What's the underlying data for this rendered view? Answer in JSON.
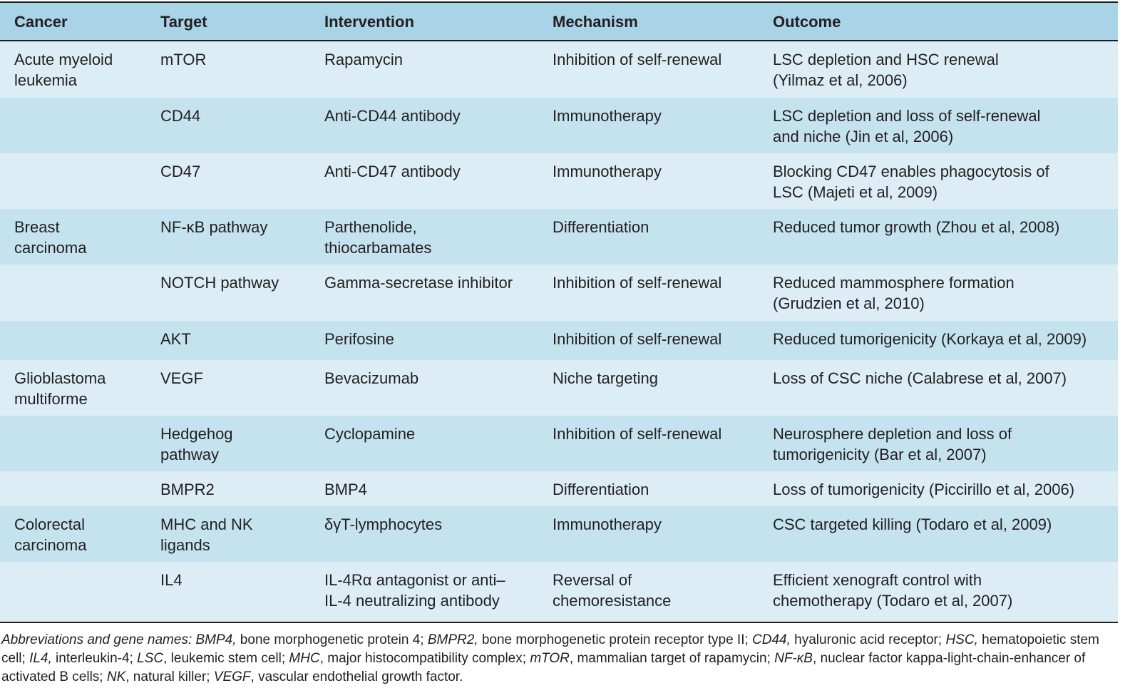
{
  "table": {
    "header": [
      "Cancer",
      "Target",
      "Intervention",
      "Mechanism",
      "Outcome"
    ],
    "rows": [
      [
        [
          "Acute myeloid",
          "leukemia"
        ],
        [
          "mTOR"
        ],
        [
          "Rapamycin"
        ],
        [
          "Inhibition of self-renewal"
        ],
        [
          "LSC depletion and HSC renewal",
          "(Yilmaz et al, 2006)"
        ]
      ],
      [
        [],
        [
          "CD44"
        ],
        [
          "Anti-CD44 antibody"
        ],
        [
          "Immunotherapy"
        ],
        [
          "LSC depletion and loss of self-renewal",
          "and niche (Jin et al, 2006)"
        ]
      ],
      [
        [],
        [
          "CD47"
        ],
        [
          "Anti-CD47 antibody"
        ],
        [
          "Immunotherapy"
        ],
        [
          "Blocking CD47 enables phagocytosis of",
          "LSC (Majeti et al, 2009)"
        ]
      ],
      [
        [
          "Breast",
          "carcinoma"
        ],
        [
          "NF-κB pathway"
        ],
        [
          "Parthenolide,",
          "thiocarbamates"
        ],
        [
          "Differentiation"
        ],
        [
          "Reduced tumor growth (Zhou et al, 2008)"
        ]
      ],
      [
        [],
        [
          "NOTCH pathway"
        ],
        [
          "Gamma-secretase inhibitor"
        ],
        [
          "Inhibition of self-renewal"
        ],
        [
          "Reduced mammosphere formation",
          "(Grudzien et al, 2010)"
        ]
      ],
      [
        [],
        [
          "AKT"
        ],
        [
          "Perifosine"
        ],
        [
          "Inhibition of self-renewal"
        ],
        [
          "Reduced tumorigenicity (Korkaya et al, 2009)"
        ]
      ],
      [
        [
          "Glioblastoma",
          "multiforme"
        ],
        [
          "VEGF"
        ],
        [
          "Bevacizumab"
        ],
        [
          "Niche targeting"
        ],
        [
          "Loss of CSC niche (Calabrese et al, 2007)"
        ]
      ],
      [
        [],
        [
          "Hedgehog",
          "pathway"
        ],
        [
          "Cyclopamine"
        ],
        [
          "Inhibition of self-renewal"
        ],
        [
          "Neurosphere depletion and loss of",
          "tumorigenicity (Bar et al, 2007)"
        ]
      ],
      [
        [],
        [
          "BMPR2"
        ],
        [
          "BMP4"
        ],
        [
          "Differentiation"
        ],
        [
          "Loss of tumorigenicity (Piccirillo et al, 2006)"
        ]
      ],
      [
        [
          "Colorectal",
          "carcinoma"
        ],
        [
          "MHC and NK",
          "ligands"
        ],
        [
          "δγT-lymphocytes"
        ],
        [
          "Immunotherapy"
        ],
        [
          "CSC targeted killing (Todaro et al, 2009)"
        ]
      ],
      [
        [],
        [
          "IL4"
        ],
        [
          "IL-4Rα antagonist or anti–",
          "IL-4 neutralizing antibody"
        ],
        [
          "Reversal of",
          "chemoresistance"
        ],
        [
          "Efficient xenograft control with",
          "chemotherapy (Todaro et al, 2007)"
        ]
      ]
    ]
  },
  "footnote": [
    {
      "text": "Abbreviations and gene names: BMP4,",
      "italic": true
    },
    {
      "text": " bone morphogenetic protein 4; ",
      "italic": false
    },
    {
      "text": "BMPR2,",
      "italic": true
    },
    {
      "text": " bone morphogenetic protein receptor type II; ",
      "italic": false
    },
    {
      "text": "CD44,",
      "italic": true
    },
    {
      "text": " hyaluronic acid receptor; ",
      "italic": false
    },
    {
      "text": "HSC,",
      "italic": true
    },
    {
      "text": " hematopoietic stem cell; ",
      "italic": false
    },
    {
      "text": "IL4,",
      "italic": true
    },
    {
      "text": " interleukin-4; ",
      "italic": false
    },
    {
      "text": "LSC",
      "italic": true
    },
    {
      "text": ", leukemic stem cell; ",
      "italic": false
    },
    {
      "text": "MHC",
      "italic": true
    },
    {
      "text": ", major histocompatibility complex; ",
      "italic": false
    },
    {
      "text": "mTOR",
      "italic": true
    },
    {
      "text": ", mammalian target of rapamycin; ",
      "italic": false
    },
    {
      "text": "NF-κB",
      "italic": true
    },
    {
      "text": ", nuclear factor kappa-light-chain-enhancer of activated B cells; ",
      "italic": false
    },
    {
      "text": "NK",
      "italic": true
    },
    {
      "text": ", natural killer; ",
      "italic": false
    },
    {
      "text": "VEGF",
      "italic": true
    },
    {
      "text": ", vascular endothelial growth factor.",
      "italic": false
    }
  ]
}
